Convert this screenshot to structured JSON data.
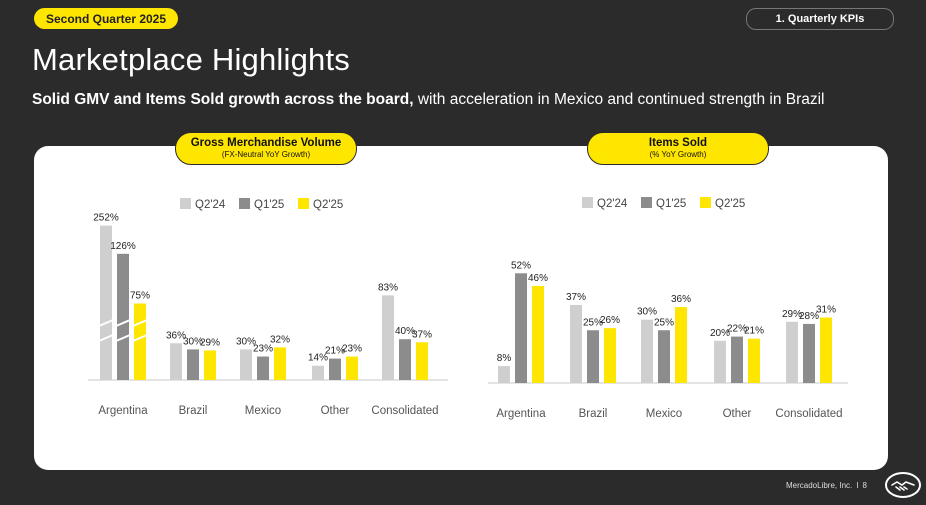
{
  "header": {
    "quarter_badge": "Second Quarter 2025",
    "section_tab": "1. Quarterly KPIs",
    "title": "Marketplace Highlights",
    "subtitle_bold": "Solid GMV and Items Sold growth across the board,",
    "subtitle_rest": " with acceleration in Mexico and continued strength in Brazil"
  },
  "footer": {
    "company": "MercadoLibre, Inc.",
    "separator": "I",
    "page_number": "8"
  },
  "colors": {
    "q2_24": "#cfcfcf",
    "q1_25": "#8c8c8c",
    "q2_25": "#ffe600",
    "background": "#2b2b2b",
    "panel": "#ffffff"
  },
  "chart_data": [
    {
      "type": "bar",
      "title": "Gross Merchandise Volume",
      "subtitle": "(FX-Neutral YoY Growth)",
      "categories": [
        "Argentina",
        "Brazil",
        "Mexico",
        "Other",
        "Consolidated"
      ],
      "series": [
        {
          "name": "Q2'24",
          "values": [
            252,
            36,
            30,
            14,
            83
          ],
          "labels": [
            "252%",
            "36%",
            "30%",
            "14%",
            "83%"
          ]
        },
        {
          "name": "Q1'25",
          "values": [
            126,
            30,
            23,
            21,
            40
          ],
          "labels": [
            "126%",
            "30%",
            "23%",
            "21%",
            "40%"
          ]
        },
        {
          "name": "Q2'25",
          "values": [
            75,
            29,
            32,
            23,
            37
          ],
          "labels": [
            "75%",
            "29%",
            "32%",
            "23%",
            "37%"
          ]
        }
      ],
      "axis_break": true,
      "legend": "top"
    },
    {
      "type": "bar",
      "title": "Items Sold",
      "subtitle": "(% YoY Growth)",
      "categories": [
        "Argentina",
        "Brazil",
        "Mexico",
        "Other",
        "Consolidated"
      ],
      "series": [
        {
          "name": "Q2'24",
          "values": [
            8,
            37,
            30,
            20,
            29
          ],
          "labels": [
            "8%",
            "37%",
            "30%",
            "20%",
            "29%"
          ]
        },
        {
          "name": "Q1'25",
          "values": [
            52,
            25,
            25,
            22,
            28
          ],
          "labels": [
            "52%",
            "25%",
            "25%",
            "22%",
            "28%"
          ]
        },
        {
          "name": "Q2'25",
          "values": [
            46,
            26,
            36,
            21,
            31
          ],
          "labels": [
            "46%",
            "26%",
            "36%",
            "21%",
            "31%"
          ]
        }
      ],
      "axis_break": false,
      "legend": "top"
    }
  ]
}
